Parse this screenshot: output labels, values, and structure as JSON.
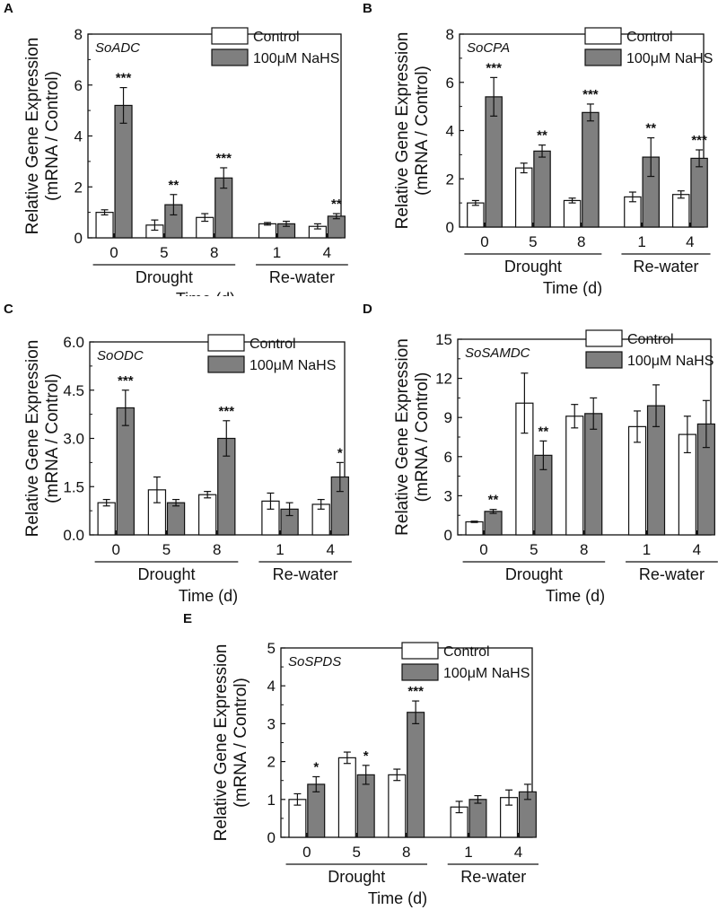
{
  "legend": {
    "control": "Control",
    "treatment": "100μM NaHS"
  },
  "colors": {
    "control_fill": "#ffffff",
    "treatment_fill": "#7f7f7f",
    "axis": "#111111"
  },
  "y_title": [
    "Relative Gene Expression",
    "(mRNA / Control)"
  ],
  "x_title": "Time (d)",
  "group_labels": [
    "Drought",
    "Re-water"
  ],
  "chart_data": [
    {
      "type": "bar",
      "panel": "A",
      "title": "SoADC",
      "categories": [
        "0",
        "5",
        "8",
        "1",
        "4"
      ],
      "ylim": [
        0,
        8
      ],
      "yticks": [
        "0",
        "2",
        "4",
        "6",
        "8"
      ],
      "series": [
        {
          "name": "Control",
          "values": [
            1.0,
            0.5,
            0.8,
            0.55,
            0.45
          ],
          "errors": [
            0.1,
            0.2,
            0.15,
            0.05,
            0.1
          ]
        },
        {
          "name": "100μM NaHS",
          "values": [
            5.2,
            1.3,
            2.35,
            0.55,
            0.85
          ],
          "errors": [
            0.7,
            0.4,
            0.4,
            0.1,
            0.1
          ]
        }
      ],
      "significance": [
        "***",
        "**",
        "***",
        "",
        "**"
      ]
    },
    {
      "type": "bar",
      "panel": "B",
      "title": "SoCPA",
      "categories": [
        "0",
        "5",
        "8",
        "1",
        "4"
      ],
      "ylim": [
        0,
        8
      ],
      "yticks": [
        "0",
        "2",
        "4",
        "6",
        "8"
      ],
      "series": [
        {
          "name": "Control",
          "values": [
            1.0,
            2.45,
            1.1,
            1.25,
            1.35
          ],
          "errors": [
            0.1,
            0.2,
            0.1,
            0.2,
            0.15
          ]
        },
        {
          "name": "100μM NaHS",
          "values": [
            5.4,
            3.15,
            4.75,
            2.9,
            2.85
          ],
          "errors": [
            0.8,
            0.25,
            0.35,
            0.8,
            0.35
          ]
        }
      ],
      "significance": [
        "***",
        "**",
        "***",
        "**",
        "***"
      ]
    },
    {
      "type": "bar",
      "panel": "C",
      "title": "SoODC",
      "categories": [
        "0",
        "5",
        "8",
        "1",
        "4"
      ],
      "ylim": [
        0,
        6
      ],
      "yticks": [
        "0.0",
        "1.5",
        "3.0",
        "4.5",
        "6.0"
      ],
      "series": [
        {
          "name": "Control",
          "values": [
            1.0,
            1.4,
            1.25,
            1.05,
            0.95
          ],
          "errors": [
            0.1,
            0.4,
            0.1,
            0.25,
            0.15
          ]
        },
        {
          "name": "100μM NaHS",
          "values": [
            3.95,
            1.0,
            3.0,
            0.8,
            1.8
          ],
          "errors": [
            0.55,
            0.1,
            0.55,
            0.2,
            0.45
          ]
        }
      ],
      "significance": [
        "***",
        "",
        "***",
        "",
        "*"
      ]
    },
    {
      "type": "bar",
      "panel": "D",
      "title": "SoSAMDC",
      "categories": [
        "0",
        "5",
        "8",
        "1",
        "4"
      ],
      "ylim": [
        0,
        15
      ],
      "yticks": [
        "0",
        "3",
        "6",
        "9",
        "12",
        "15"
      ],
      "series": [
        {
          "name": "Control",
          "values": [
            1.0,
            10.1,
            9.1,
            8.3,
            7.7
          ],
          "errors": [
            0.05,
            2.3,
            0.9,
            1.2,
            1.4
          ]
        },
        {
          "name": "100μM NaHS",
          "values": [
            1.8,
            6.1,
            9.3,
            9.9,
            8.5
          ],
          "errors": [
            0.15,
            1.1,
            1.2,
            1.6,
            1.8
          ]
        }
      ],
      "significance": [
        "**",
        "**",
        "",
        "",
        ""
      ]
    },
    {
      "type": "bar",
      "panel": "E",
      "title": "SoSPDS",
      "categories": [
        "0",
        "5",
        "8",
        "1",
        "4"
      ],
      "ylim": [
        0,
        5
      ],
      "yticks": [
        "0",
        "1",
        "2",
        "3",
        "4",
        "5"
      ],
      "series": [
        {
          "name": "Control",
          "values": [
            1.0,
            2.1,
            1.65,
            0.8,
            1.05
          ],
          "errors": [
            0.15,
            0.15,
            0.15,
            0.15,
            0.2
          ]
        },
        {
          "name": "100μM NaHS",
          "values": [
            1.4,
            1.65,
            3.3,
            1.0,
            1.2
          ],
          "errors": [
            0.2,
            0.25,
            0.3,
            0.1,
            0.2
          ]
        }
      ],
      "significance": [
        "*",
        "*",
        "***",
        "",
        ""
      ]
    }
  ]
}
